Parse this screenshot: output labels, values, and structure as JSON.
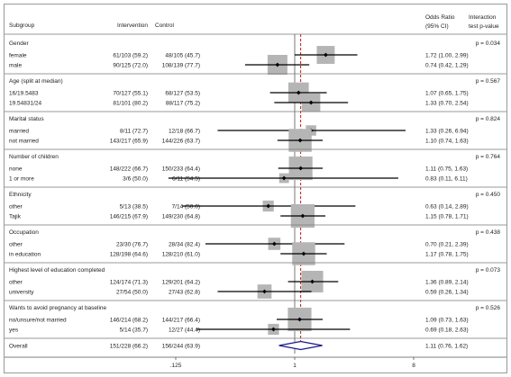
{
  "chart_data": {
    "type": "forest",
    "headers": {
      "subgroup": "Subgroup",
      "intervention": "Intervention",
      "control": "Control",
      "or_line1": "Odds Ratio",
      "or_line2": "(95% CI)",
      "p_line1": "Interaction",
      "p_line2": "test p-value"
    },
    "x_ticks": [
      {
        "value": 0.125,
        "label": ".125"
      },
      {
        "value": 1,
        "label": "1"
      },
      {
        "value": 8,
        "label": "8"
      }
    ],
    "x_scale": "log",
    "xlim": [
      0.03,
      11
    ],
    "reference_line": 1,
    "overall_line": 1.11,
    "groups": [
      {
        "title": "Gender",
        "p": "p = 0.034",
        "rows": [
          {
            "label": "female",
            "intervention": "61/103 (59.2)",
            "control": "48/105 (45.7)",
            "or_text": "1.72 (1.00, 2.99)",
            "or": 1.72,
            "lo": 1.0,
            "hi": 2.99,
            "weight": 0.85
          },
          {
            "label": "male",
            "intervention": "90/125 (72.0)",
            "control": "108/139 (77.7)",
            "or_text": "0.74 (0.42, 1.29)",
            "or": 0.74,
            "lo": 0.42,
            "hi": 1.29,
            "weight": 1.0
          }
        ]
      },
      {
        "title": "Age (split at median)",
        "p": "p = 0.567",
        "rows": [
          {
            "label": "16/19.5483",
            "intervention": "70/127 (55.1)",
            "control": "68/127 (53.5)",
            "or_text": "1.07 (0.65, 1.75)",
            "or": 1.07,
            "lo": 0.65,
            "hi": 1.75,
            "weight": 1.05
          },
          {
            "label": "19.54831/24",
            "intervention": "81/101 (80.2)",
            "control": "88/117 (75.2)",
            "or_text": "1.33 (0.70, 2.54)",
            "or": 1.33,
            "lo": 0.7,
            "hi": 2.54,
            "weight": 0.9
          }
        ]
      },
      {
        "title": "Marital status",
        "p": "p = 0.824",
        "rows": [
          {
            "label": "married",
            "intervention": "8/11 (72.7)",
            "control": "12/18 (66.7)",
            "or_text": "1.33 (0.26, 6.94)",
            "or": 1.33,
            "lo": 0.26,
            "hi": 6.94,
            "weight": 0.25
          },
          {
            "label": "not married",
            "intervention": "143/217 (65.9)",
            "control": "144/226 (63.7)",
            "or_text": "1.10 (0.74, 1.63)",
            "or": 1.1,
            "lo": 0.74,
            "hi": 1.63,
            "weight": 1.25
          }
        ]
      },
      {
        "title": "Number of children",
        "p": "p = 0.764",
        "rows": [
          {
            "label": "none",
            "intervention": "148/222 (66.7)",
            "control": "150/233 (64.4)",
            "or_text": "1.11 (0.75, 1.63)",
            "or": 1.11,
            "lo": 0.75,
            "hi": 1.63,
            "weight": 1.3
          },
          {
            "label": "1 or more",
            "intervention": "3/6 (50.0)",
            "control": "6/11 (54.5)",
            "or_text": "0.83 (0.11, 6.11)",
            "or": 0.83,
            "lo": 0.11,
            "hi": 6.11,
            "weight": 0.2
          }
        ]
      },
      {
        "title": "Ethnicity",
        "p": "p = 0.450",
        "rows": [
          {
            "label": "other",
            "intervention": "5/13 (38.5)",
            "control": "7/14 (50.0)",
            "or_text": "0.63 (0.14, 2.89)",
            "or": 0.63,
            "lo": 0.14,
            "hi": 2.89,
            "weight": 0.3
          },
          {
            "label": "Tajik",
            "intervention": "146/215 (67.9)",
            "control": "149/230 (64.8)",
            "or_text": "1.15 (0.78, 1.71)",
            "or": 1.15,
            "lo": 0.78,
            "hi": 1.71,
            "weight": 1.3
          }
        ]
      },
      {
        "title": "Occupation",
        "p": "p = 0.438",
        "rows": [
          {
            "label": "other",
            "intervention": "23/30 (76.7)",
            "control": "28/34 (82.4)",
            "or_text": "0.70 (0.21, 2.39)",
            "or": 0.7,
            "lo": 0.21,
            "hi": 2.39,
            "weight": 0.4
          },
          {
            "label": "in education",
            "intervention": "128/198 (64.6)",
            "control": "128/210 (61.0)",
            "or_text": "1.17 (0.78, 1.75)",
            "or": 1.17,
            "lo": 0.78,
            "hi": 1.75,
            "weight": 1.25
          }
        ]
      },
      {
        "title": "Highest level of education completed",
        "p": "p = 0.073",
        "rows": [
          {
            "label": "other",
            "intervention": "124/174 (71.3)",
            "control": "129/201 (64.2)",
            "or_text": "1.36 (0.89, 2.14)",
            "or": 1.36,
            "lo": 0.89,
            "hi": 2.14,
            "weight": 1.15
          },
          {
            "label": "university",
            "intervention": "27/54 (50.0)",
            "control": "27/43 (62.8)",
            "or_text": "0.59 (0.26, 1.34)",
            "or": 0.59,
            "lo": 0.26,
            "hi": 1.34,
            "weight": 0.55
          }
        ]
      },
      {
        "title": "Wants to avoid pregnancy at baseline",
        "p": "p = 0.526",
        "rows": [
          {
            "label": "no/unsure/not married",
            "intervention": "146/214 (68.2)",
            "control": "144/217 (66.4)",
            "or_text": "1.09 (0.73, 1.63)",
            "or": 1.09,
            "lo": 0.73,
            "hi": 1.63,
            "weight": 1.3
          },
          {
            "label": "yes",
            "intervention": "5/14 (35.7)",
            "control": "12/27 (44.4)",
            "or_text": "0.69 (0.18, 2.63)",
            "or": 0.69,
            "lo": 0.18,
            "hi": 2.63,
            "weight": 0.3
          }
        ]
      }
    ],
    "overall": {
      "label": "Overall",
      "intervention": "151/228 (66.2)",
      "control": "156/244 (63.9)",
      "or_text": "1.11 (0.76, 1.62)",
      "or": 1.11,
      "lo": 0.76,
      "hi": 1.62
    },
    "colors": {
      "box": "#b5b5b5",
      "line": "#000000",
      "ref_line": "#c01818",
      "diamond": "#1a1a8c",
      "separator": "#777777"
    }
  }
}
